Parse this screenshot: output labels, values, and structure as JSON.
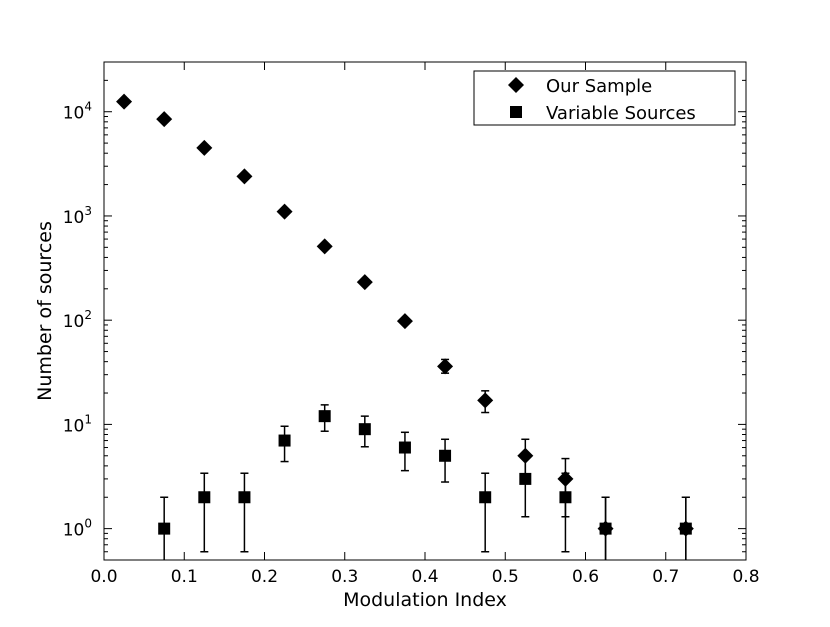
{
  "chart_data": {
    "type": "scatter",
    "title": "",
    "xlabel": "Modulation Index",
    "ylabel": "Number of sources",
    "xlim": [
      0.0,
      0.8
    ],
    "ylim": [
      0.5,
      30000
    ],
    "yscale": "log",
    "grid": false,
    "legend_position": "top-right",
    "x_ticks": [
      0.0,
      0.1,
      0.2,
      0.3,
      0.4,
      0.5,
      0.6,
      0.7,
      0.8
    ],
    "x_tick_labels": [
      "0.0",
      "0.1",
      "0.2",
      "0.3",
      "0.4",
      "0.5",
      "0.6",
      "0.7",
      "0.8"
    ],
    "y_ticks": [
      1,
      10,
      100,
      1000,
      10000
    ],
    "y_tick_bases": [
      "10",
      "10",
      "10",
      "10",
      "10"
    ],
    "y_tick_exponents": [
      "0",
      "1",
      "2",
      "3",
      "4"
    ],
    "series": [
      {
        "name": "Our Sample",
        "marker": "diamond",
        "color": "#000000",
        "x": [
          0.025,
          0.075,
          0.125,
          0.175,
          0.225,
          0.275,
          0.325,
          0.375,
          0.425,
          0.475,
          0.525,
          0.575,
          0.625,
          0.725
        ],
        "y": [
          12500,
          8500,
          4500,
          2400,
          1100,
          510,
          232,
          98,
          36,
          17,
          5,
          3,
          1,
          1
        ],
        "yerr_low": [
          null,
          null,
          null,
          null,
          null,
          null,
          null,
          null,
          31,
          13,
          2.8,
          1.3,
          0.1,
          0.1
        ],
        "yerr_high": [
          null,
          null,
          null,
          null,
          null,
          null,
          null,
          null,
          42,
          21,
          7.2,
          4.7,
          2.0,
          2.0
        ]
      },
      {
        "name": "Variable Sources",
        "marker": "square",
        "color": "#000000",
        "x": [
          0.075,
          0.125,
          0.175,
          0.225,
          0.275,
          0.325,
          0.375,
          0.425,
          0.475,
          0.525,
          0.575,
          0.625,
          0.725
        ],
        "y": [
          1,
          2,
          2,
          7,
          12,
          9,
          6,
          5,
          2,
          3,
          2,
          1,
          1
        ],
        "yerr_low": [
          0.1,
          0.6,
          0.6,
          4.4,
          8.6,
          6.1,
          3.6,
          2.8,
          0.6,
          1.3,
          0.6,
          0.1,
          0.1
        ],
        "yerr_high": [
          2.0,
          3.4,
          3.4,
          9.6,
          15.4,
          12.0,
          8.4,
          7.2,
          3.4,
          4.7,
          3.4,
          2.0,
          2.0
        ]
      }
    ]
  }
}
